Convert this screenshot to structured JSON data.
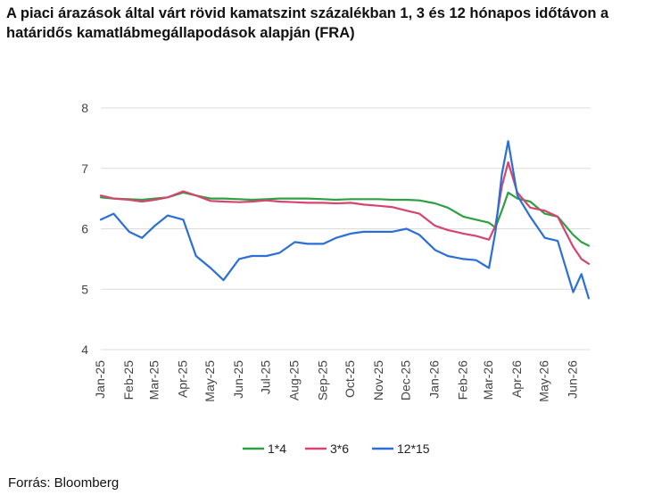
{
  "title": "A piaci árazások által várt rövid kamatszint százalékban 1, 3 és 12 hónapos időtávon a határidős kamatlábmegállapodások alapján (FRA)",
  "source": "Forrás: Bloomberg",
  "chart_data": {
    "type": "line",
    "title": "A piaci árazások által várt rövid kamatszint százalékban 1, 3 és 12 hónapos időtávon a határidős kamatlábmegállapodások alapján (FRA)",
    "xlabel": "",
    "ylabel": "",
    "ylim": [
      4,
      8
    ],
    "yticks": [
      4,
      5,
      6,
      7,
      8
    ],
    "xlim": [
      "2025-01-01",
      "2026-06-20"
    ],
    "xtick_labels": [
      "Jan-25",
      "Feb-25",
      "Mar-25",
      "Apr-25",
      "May-25",
      "Jun-25",
      "Jul-25",
      "Aug-25",
      "Sep-25",
      "Oct-25",
      "Nov-25",
      "Dec-25",
      "Jan-26",
      "Feb-26",
      "Mar-26",
      "Apr-26",
      "May-26",
      "Jun-26"
    ],
    "grid": "horizontal",
    "legend_position": "bottom",
    "x": [
      "2025-01-01",
      "2025-01-15",
      "2025-02-01",
      "2025-02-15",
      "2025-03-01",
      "2025-03-15",
      "2025-04-01",
      "2025-04-15",
      "2025-05-01",
      "2025-05-15",
      "2025-06-01",
      "2025-06-15",
      "2025-07-01",
      "2025-07-15",
      "2025-08-01",
      "2025-08-15",
      "2025-09-01",
      "2025-09-15",
      "2025-10-01",
      "2025-10-15",
      "2025-11-01",
      "2025-11-15",
      "2025-12-01",
      "2025-12-15",
      "2026-01-01",
      "2026-01-15",
      "2026-02-01",
      "2026-02-15",
      "2026-03-01",
      "2026-03-08",
      "2026-03-15",
      "2026-03-22",
      "2026-04-01",
      "2026-04-15",
      "2026-05-01",
      "2026-05-15",
      "2026-06-01",
      "2026-06-10",
      "2026-06-18"
    ],
    "series": [
      {
        "name": "1*4",
        "color": "#2ea043",
        "values": [
          6.52,
          6.5,
          6.49,
          6.48,
          6.5,
          6.52,
          6.6,
          6.55,
          6.5,
          6.5,
          6.49,
          6.48,
          6.49,
          6.5,
          6.5,
          6.5,
          6.49,
          6.48,
          6.49,
          6.49,
          6.49,
          6.48,
          6.48,
          6.47,
          6.42,
          6.35,
          6.2,
          6.15,
          6.1,
          6.02,
          6.3,
          6.6,
          6.5,
          6.45,
          6.25,
          6.2,
          5.9,
          5.78,
          5.72
        ]
      },
      {
        "name": "3*6",
        "color": "#d6456f",
        "values": [
          6.55,
          6.5,
          6.48,
          6.45,
          6.48,
          6.52,
          6.62,
          6.55,
          6.46,
          6.45,
          6.44,
          6.45,
          6.47,
          6.45,
          6.44,
          6.43,
          6.43,
          6.42,
          6.43,
          6.4,
          6.38,
          6.36,
          6.3,
          6.25,
          6.05,
          5.98,
          5.92,
          5.88,
          5.82,
          6.05,
          6.7,
          7.1,
          6.6,
          6.35,
          6.3,
          6.2,
          5.7,
          5.5,
          5.42
        ]
      },
      {
        "name": "12*15",
        "color": "#2b6fd6",
        "values": [
          6.15,
          6.25,
          5.95,
          5.85,
          6.05,
          6.22,
          6.15,
          5.55,
          5.35,
          5.15,
          5.5,
          5.55,
          5.55,
          5.6,
          5.78,
          5.75,
          5.75,
          5.85,
          5.92,
          5.95,
          5.95,
          5.95,
          6.0,
          5.9,
          5.65,
          5.55,
          5.5,
          5.48,
          5.35,
          5.95,
          6.9,
          7.45,
          6.55,
          6.2,
          5.85,
          5.8,
          4.95,
          5.25,
          4.85
        ]
      }
    ]
  }
}
